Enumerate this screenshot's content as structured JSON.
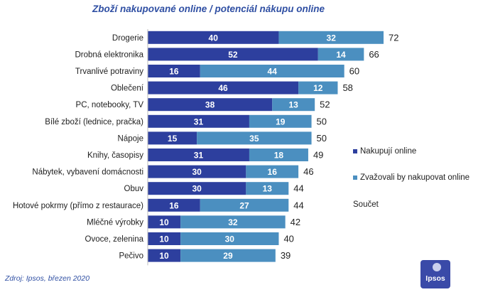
{
  "chart_data": {
    "type": "bar",
    "stacked": true,
    "orientation": "horizontal",
    "title": "Zboží nakupované online / potenciál nákupu online",
    "categories": [
      "Drogerie",
      "Drobná elektronika",
      "Trvanlivé potraviny",
      "Oblečení",
      "PC, notebooky, TV",
      "Bílé zboží (lednice, pračka)",
      "Nápoje",
      "Knihy, časopisy",
      "Nábytek, vybavení domácnosti",
      "Obuv",
      "Hotové pokrmy (přímo z restaurace)",
      "Mléčné výrobky",
      "Ovoce, zelenina",
      "Pečivo"
    ],
    "series": [
      {
        "name": "Nakupují online",
        "color": "#2d3f9e",
        "values": [
          40,
          52,
          16,
          46,
          38,
          31,
          15,
          31,
          30,
          30,
          16,
          10,
          10,
          10
        ]
      },
      {
        "name": "Zvažovali by nakupovat online",
        "color": "#4b8fc0",
        "values": [
          32,
          14,
          44,
          12,
          13,
          19,
          35,
          18,
          16,
          13,
          27,
          32,
          30,
          29
        ]
      }
    ],
    "totals": [
      72,
      66,
      60,
      58,
      52,
      50,
      50,
      49,
      46,
      44,
      44,
      42,
      40,
      39
    ],
    "totals_label": "Součet",
    "xlim": [
      0,
      72
    ],
    "grid": false,
    "legend_position": "right"
  },
  "source": "Zdroj: Ipsos, březen 2020",
  "logo": {
    "text": "Ipsos"
  }
}
